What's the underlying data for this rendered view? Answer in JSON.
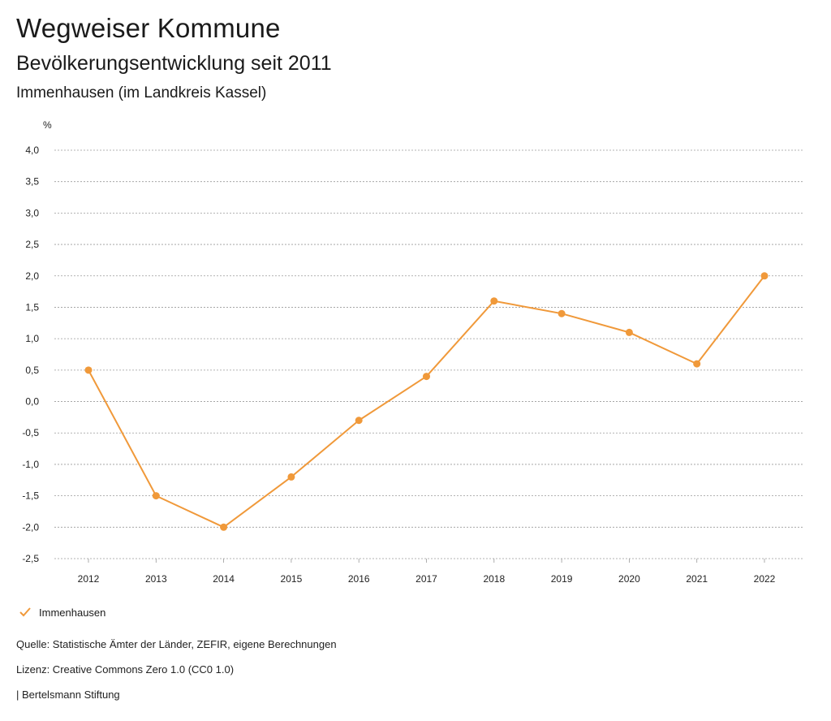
{
  "header": {
    "title": "Wegweiser Kommune",
    "subtitle": "Bevölkerungsentwicklung seit 2011",
    "region": "Immenhausen (im Landkreis Kassel)"
  },
  "legend": {
    "label": "Immenhausen"
  },
  "footer": {
    "source": "Quelle: Statistische Ämter der Länder, ZEFIR, eigene Berechnungen",
    "license": "Lizenz: Creative Commons Zero 1.0 (CC0 1.0)",
    "publisher": "| Bertelsmann Stiftung"
  },
  "colors": {
    "series": "#f0993a",
    "grid": "#9a9a9a"
  },
  "chart_data": {
    "type": "line",
    "title": "Bevölkerungsentwicklung seit 2011",
    "xlabel": "",
    "ylabel": "%",
    "categories": [
      "2012",
      "2013",
      "2014",
      "2015",
      "2016",
      "2017",
      "2018",
      "2019",
      "2020",
      "2021",
      "2022"
    ],
    "series": [
      {
        "name": "Immenhausen",
        "values": [
          0.5,
          -1.5,
          -2.0,
          -1.2,
          -0.3,
          0.4,
          1.6,
          1.4,
          1.1,
          0.6,
          2.0
        ]
      }
    ],
    "yticks": [
      "4,0",
      "3,5",
      "3,0",
      "2,5",
      "2,0",
      "1,5",
      "1,0",
      "0,5",
      "0,0",
      "-0,5",
      "-1,0",
      "-1,5",
      "-2,0",
      "-2,5"
    ],
    "ylim": [
      -2.5,
      4.0
    ],
    "grid": true,
    "legend_position": "bottom-left"
  }
}
